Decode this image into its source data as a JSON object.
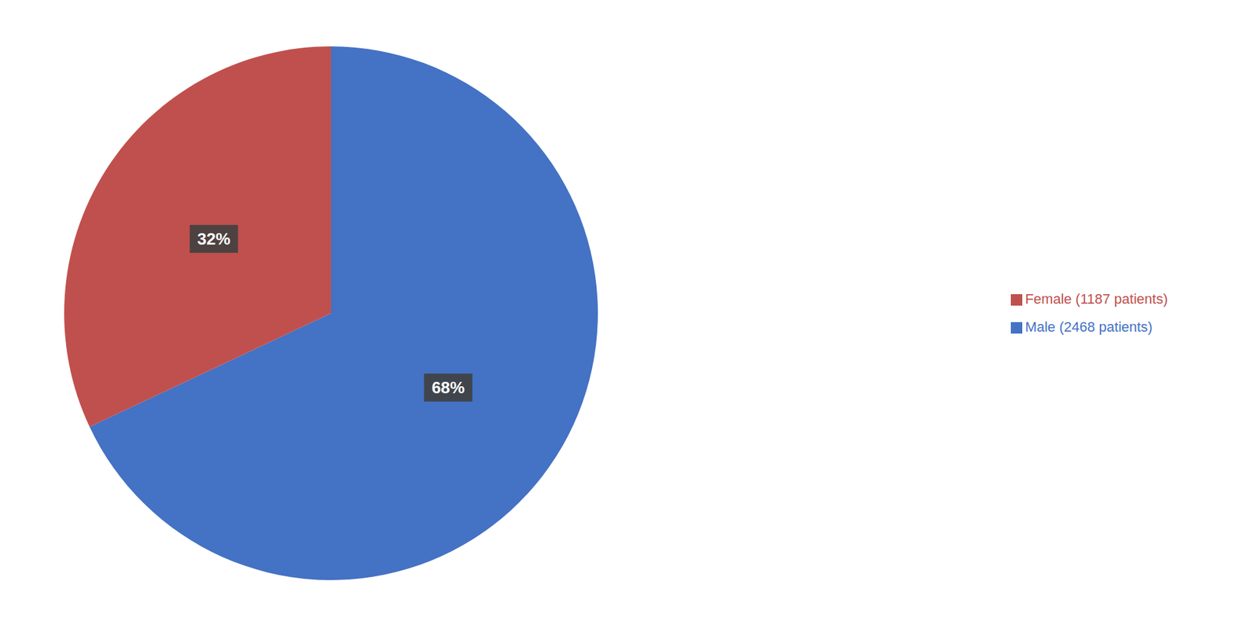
{
  "chart_data": {
    "type": "pie",
    "categories": [
      "Male (2468 patients)",
      "Female (1187 patients)"
    ],
    "values": [
      68,
      32
    ],
    "value_labels": [
      "68%",
      "32%"
    ],
    "colors": [
      "#4472C4",
      "#C0504D"
    ],
    "data_labels": true,
    "legend": "right"
  }
}
